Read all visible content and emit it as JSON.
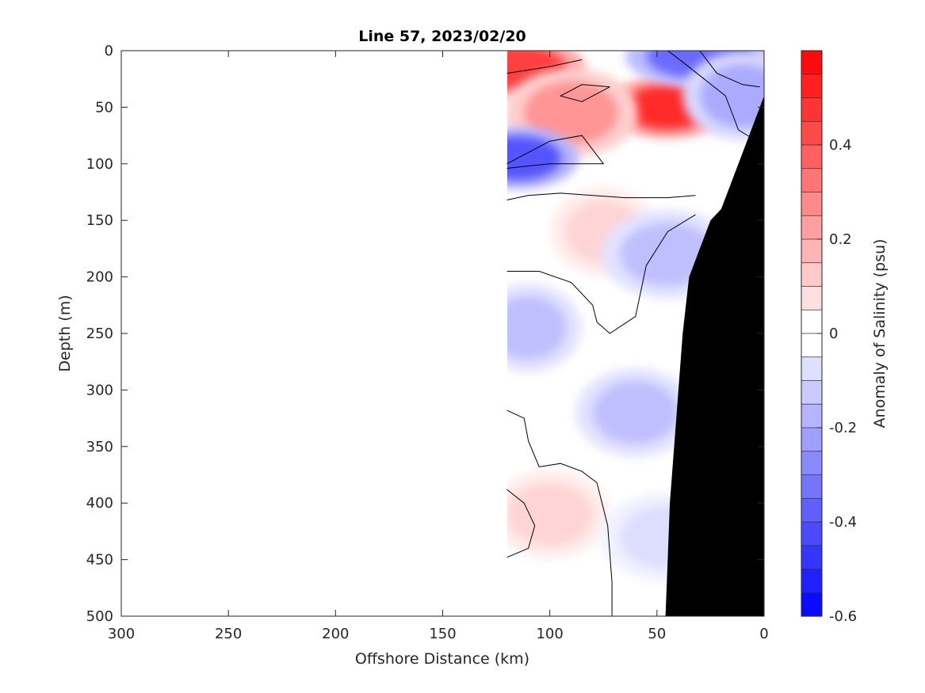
{
  "chart_data": {
    "type": "heatmap",
    "title": "Line 57, 2023/02/20",
    "xlabel": "Offshore Distance (km)",
    "ylabel": "Depth (m)",
    "colorbar_label": "Anomaly of Salinity (psu)",
    "x_axis": {
      "lim": [
        300,
        0
      ],
      "reversed": true,
      "ticks": [
        300,
        250,
        200,
        150,
        100,
        50,
        0
      ],
      "tick_labels": [
        "300",
        "250",
        "200",
        "150",
        "100",
        "50",
        "0"
      ]
    },
    "y_axis": {
      "lim": [
        0,
        500
      ],
      "reversed": true,
      "ticks": [
        0,
        50,
        100,
        150,
        200,
        250,
        300,
        350,
        400,
        450,
        500
      ],
      "tick_labels": [
        "0",
        "50",
        "100",
        "150",
        "200",
        "250",
        "300",
        "350",
        "400",
        "450",
        "500"
      ]
    },
    "colorbar": {
      "lim": [
        -0.6,
        0.6
      ],
      "ticks": [
        0.4,
        0.2,
        0,
        -0.2,
        -0.4,
        -0.6
      ],
      "tick_labels": [
        "0.4",
        "0.2",
        "0",
        "-0.2",
        "-0.4",
        "-0.6"
      ],
      "levels": 24,
      "colormap": "blue-white-red"
    },
    "data_extent_km": [
      120,
      0
    ],
    "features": [
      {
        "label": "positive anomaly",
        "x": 45,
        "y": 50,
        "value": 0.5
      },
      {
        "label": "positive anomaly",
        "x": 115,
        "y": 15,
        "value": 0.45
      },
      {
        "label": "positive anomaly",
        "x": 90,
        "y": 55,
        "value": 0.25
      },
      {
        "label": "positive anomaly",
        "x": 75,
        "y": 160,
        "value": 0.1
      },
      {
        "label": "positive anomaly",
        "x": 100,
        "y": 410,
        "value": 0.1
      },
      {
        "label": "negative anomaly",
        "x": 30,
        "y": 5,
        "value": -0.35
      },
      {
        "label": "negative anomaly",
        "x": 115,
        "y": 95,
        "value": -0.4
      },
      {
        "label": "negative anomaly",
        "x": 10,
        "y": 40,
        "value": -0.2
      },
      {
        "label": "negative anomaly",
        "x": 45,
        "y": 180,
        "value": -0.15
      },
      {
        "label": "negative anomaly",
        "x": 110,
        "y": 245,
        "value": -0.15
      },
      {
        "label": "negative anomaly",
        "x": 60,
        "y": 320,
        "value": -0.15
      },
      {
        "label": "negative anomaly",
        "x": 45,
        "y": 430,
        "value": -0.08
      }
    ],
    "bathymetry_km_depth": [
      [
        0,
        40
      ],
      [
        10,
        90
      ],
      [
        20,
        140
      ],
      [
        25,
        150
      ],
      [
        35,
        200
      ],
      [
        38,
        250
      ],
      [
        40,
        300
      ],
      [
        42,
        350
      ],
      [
        44,
        400
      ],
      [
        45,
        450
      ],
      [
        46,
        500
      ],
      [
        0,
        500
      ]
    ],
    "colors": {
      "positive": "#ff0000",
      "negative": "#0000ff",
      "land": "#000000"
    }
  }
}
